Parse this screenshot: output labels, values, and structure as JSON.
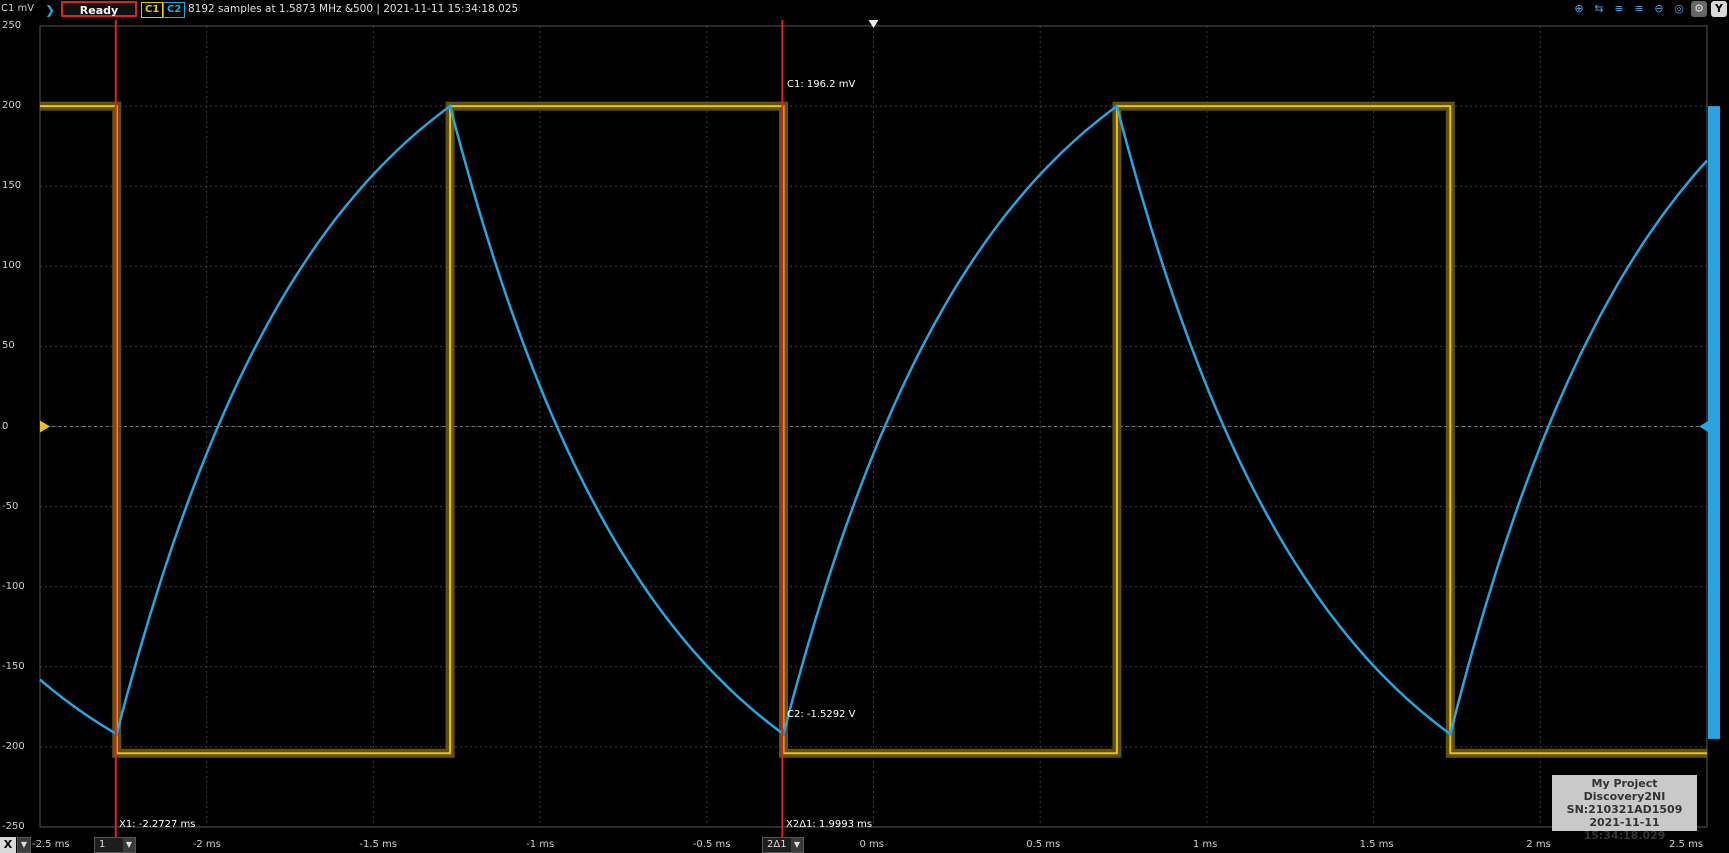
{
  "topbar": {
    "unit": "C1 mV",
    "status": "Ready",
    "c1": "C1",
    "c2": "C2",
    "info": "8192 samples at 1.5873 MHz &500 | 2021-11-11 15:34:18.025",
    "tools": [
      "zoom-in-icon",
      "zoom-x-icon",
      "zoom-y-icon",
      "zoom-fit-icon",
      "zoom-out-icon",
      "zoom-reset-icon",
      "settings-icon",
      "Y"
    ]
  },
  "y_axis_labels": [
    "250",
    "200",
    "150",
    "100",
    "50",
    "0",
    "-50",
    "-100",
    "-150",
    "-200",
    "-250"
  ],
  "x_axis_labels": [
    "-2.5 ms",
    "-2 ms",
    "-1.5 ms",
    "-1 ms",
    "-0.5 ms",
    "0 ms",
    "0.5 ms",
    "1 ms",
    "1.5 ms",
    "2 ms",
    "2.5 ms"
  ],
  "cursors": {
    "x1": "X1: -2.2727 ms",
    "x2": "X2Δ1: 1.9993 ms",
    "c1": "C1: 196.2 mV",
    "c2": "C2: -1.5292 V"
  },
  "bottom": {
    "axis": "X",
    "dd1": "1",
    "dd2": "2Δ1"
  },
  "badge": {
    "line1": "My Project",
    "line2": "Discovery2NI",
    "line3": "SN:210321AD1509",
    "line4": "2021-11-11 15:34:18.029"
  },
  "colors": {
    "c1": "#e8c21a",
    "c2": "#2aa4e0",
    "cursor": "#e02020",
    "grid": "#3c3c3c"
  },
  "chart_data": {
    "type": "line",
    "xlim_ms": [
      -2.5,
      2.5
    ],
    "ylim_mV": [
      -250,
      250
    ],
    "grid": true,
    "series": [
      {
        "name": "C1",
        "kind": "square",
        "high_mV": 200,
        "low_mV": -204,
        "edges_ms": [
          {
            "t": -2.27,
            "to": "low"
          },
          {
            "t": -1.27,
            "to": "high"
          },
          {
            "t": -0.27,
            "to": "low"
          },
          {
            "t": 0.73,
            "to": "high"
          },
          {
            "t": 1.73,
            "to": "low"
          }
        ],
        "start": "high"
      },
      {
        "name": "C2",
        "kind": "rc",
        "description": "exponential charge/discharge between -192 and 200",
        "peaks": [
          {
            "t": -2.5,
            "y": -158
          },
          {
            "t": -2.27,
            "y": -192
          },
          {
            "t": -1.27,
            "y": 200
          },
          {
            "t": -0.27,
            "y": -192
          },
          {
            "t": 0.73,
            "y": 200
          },
          {
            "t": 1.73,
            "y": -192
          },
          {
            "t": 2.5,
            "y": 166
          }
        ]
      }
    ],
    "cursors_ms": [
      -2.2727,
      -0.2734
    ]
  }
}
